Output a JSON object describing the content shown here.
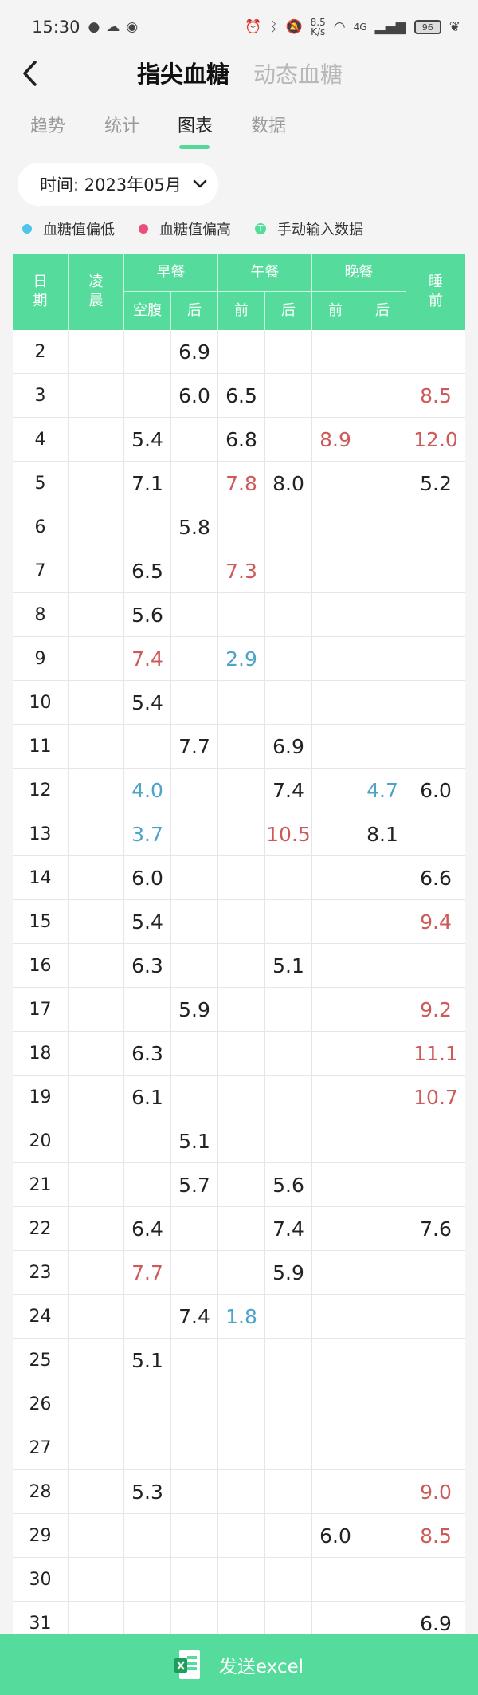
{
  "status_bar": {
    "time": "15:30",
    "net_speed_value": "8.5",
    "net_speed_unit": "K/s",
    "signal": "4G",
    "battery": "96"
  },
  "header": {
    "title_active": "指尖血糖",
    "title_inactive": "动态血糖"
  },
  "tabs": [
    {
      "label": "趋势",
      "active": false
    },
    {
      "label": "统计",
      "active": false
    },
    {
      "label": "图表",
      "active": true
    },
    {
      "label": "数据",
      "active": false
    }
  ],
  "time_filter": {
    "label": "时间: 2023年05月"
  },
  "legend": [
    {
      "label": "血糖值偏低",
      "color": "#4ec6ea"
    },
    {
      "label": "血糖值偏高",
      "color": "#ea4f7b"
    },
    {
      "label": "手动输入数据",
      "color": "#55dc9c",
      "symbol": "T"
    }
  ],
  "table": {
    "headers": {
      "date": "日\n期",
      "dawn": "凌\n晨",
      "breakfast": "早餐",
      "lunch": "午餐",
      "dinner": "晚餐",
      "bedtime": "睡\n前",
      "fasting": "空腹",
      "after": "后",
      "before": "前"
    },
    "rows": [
      {
        "date": "2",
        "values": [
          "",
          "",
          "6.9",
          "",
          "",
          "",
          "",
          ""
        ]
      },
      {
        "date": "3",
        "values": [
          "",
          "",
          "6.0",
          "6.5",
          "",
          "",
          "",
          "8.5"
        ]
      },
      {
        "date": "4",
        "values": [
          "",
          "5.4",
          "",
          "6.8",
          "",
          "8.9",
          "",
          "12.0"
        ]
      },
      {
        "date": "5",
        "values": [
          "",
          "7.1",
          "",
          "7.8",
          "8.0",
          "",
          "",
          "5.2"
        ]
      },
      {
        "date": "6",
        "values": [
          "",
          "",
          "5.8",
          "",
          "",
          "",
          "",
          ""
        ]
      },
      {
        "date": "7",
        "values": [
          "",
          "6.5",
          "",
          "7.3",
          "",
          "",
          "",
          ""
        ]
      },
      {
        "date": "8",
        "values": [
          "",
          "5.6",
          "",
          "",
          "",
          "",
          "",
          ""
        ]
      },
      {
        "date": "9",
        "values": [
          "",
          "7.4",
          "",
          "2.9",
          "",
          "",
          "",
          ""
        ]
      },
      {
        "date": "10",
        "values": [
          "",
          "5.4",
          "",
          "",
          "",
          "",
          "",
          ""
        ]
      },
      {
        "date": "11",
        "values": [
          "",
          "",
          "7.7",
          "",
          "6.9",
          "",
          "",
          ""
        ]
      },
      {
        "date": "12",
        "values": [
          "",
          "4.0",
          "",
          "",
          "7.4",
          "",
          "4.7",
          "6.0"
        ]
      },
      {
        "date": "13",
        "values": [
          "",
          "3.7",
          "",
          "",
          "10.5",
          "",
          "8.1",
          ""
        ]
      },
      {
        "date": "14",
        "values": [
          "",
          "6.0",
          "",
          "",
          "",
          "",
          "",
          "6.6"
        ]
      },
      {
        "date": "15",
        "values": [
          "",
          "5.4",
          "",
          "",
          "",
          "",
          "",
          "9.4"
        ]
      },
      {
        "date": "16",
        "values": [
          "",
          "6.3",
          "",
          "",
          "5.1",
          "",
          "",
          ""
        ]
      },
      {
        "date": "17",
        "values": [
          "",
          "",
          "5.9",
          "",
          "",
          "",
          "",
          "9.2"
        ]
      },
      {
        "date": "18",
        "values": [
          "",
          "6.3",
          "",
          "",
          "",
          "",
          "",
          "11.1"
        ]
      },
      {
        "date": "19",
        "values": [
          "",
          "6.1",
          "",
          "",
          "",
          "",
          "",
          "10.7"
        ]
      },
      {
        "date": "20",
        "values": [
          "",
          "",
          "5.1",
          "",
          "",
          "",
          "",
          ""
        ]
      },
      {
        "date": "21",
        "values": [
          "",
          "",
          "5.7",
          "",
          "5.6",
          "",
          "",
          ""
        ]
      },
      {
        "date": "22",
        "values": [
          "",
          "6.4",
          "",
          "",
          "7.4",
          "",
          "",
          "7.6"
        ]
      },
      {
        "date": "23",
        "values": [
          "",
          "7.7",
          "",
          "",
          "5.9",
          "",
          "",
          ""
        ]
      },
      {
        "date": "24",
        "values": [
          "",
          "",
          "7.4",
          "1.8",
          "",
          "",
          "",
          ""
        ]
      },
      {
        "date": "25",
        "values": [
          "",
          "5.1",
          "",
          "",
          "",
          "",
          "",
          ""
        ]
      },
      {
        "date": "26",
        "values": [
          "",
          "",
          "",
          "",
          "",
          "",
          "",
          ""
        ]
      },
      {
        "date": "27",
        "values": [
          "",
          "",
          "",
          "",
          "",
          "",
          "",
          ""
        ]
      },
      {
        "date": "28",
        "values": [
          "",
          "5.3",
          "",
          "",
          "",
          "",
          "",
          "9.0"
        ]
      },
      {
        "date": "29",
        "values": [
          "",
          "",
          "",
          "",
          "",
          "6.0",
          "",
          "8.5"
        ]
      },
      {
        "date": "30",
        "values": [
          "",
          "",
          "",
          "",
          "",
          "",
          "",
          ""
        ]
      },
      {
        "date": "31",
        "values": [
          "",
          "",
          "",
          "",
          "",
          "",
          "",
          "6.9"
        ]
      }
    ],
    "status": {
      "3": [
        "",
        "",
        "",
        "",
        "",
        "",
        "",
        "high"
      ],
      "4": [
        "",
        "",
        "",
        "",
        "",
        "high",
        "",
        "high"
      ],
      "5": [
        "",
        "",
        "",
        "high",
        "",
        "",
        "",
        ""
      ],
      "7": [
        "",
        "",
        "",
        "high",
        "",
        "",
        "",
        ""
      ],
      "9": [
        "",
        "high",
        "",
        "low",
        "",
        "",
        "",
        ""
      ],
      "12": [
        "",
        "low",
        "",
        "",
        "",
        "",
        "low",
        ""
      ],
      "13": [
        "",
        "low",
        "",
        "",
        "high",
        "",
        "",
        ""
      ],
      "15": [
        "",
        "",
        "",
        "",
        "",
        "",
        "",
        "high"
      ],
      "17": [
        "",
        "",
        "",
        "",
        "",
        "",
        "",
        "high"
      ],
      "18": [
        "",
        "",
        "",
        "",
        "",
        "",
        "",
        "high"
      ],
      "19": [
        "",
        "",
        "",
        "",
        "",
        "",
        "",
        "high"
      ],
      "23": [
        "",
        "high",
        "",
        "",
        "",
        "",
        "",
        ""
      ],
      "24": [
        "",
        "",
        "",
        "low",
        "",
        "",
        "",
        ""
      ],
      "28": [
        "",
        "",
        "",
        "",
        "",
        "",
        "",
        "high"
      ],
      "29": [
        "",
        "",
        "",
        "",
        "",
        "",
        "",
        "high"
      ]
    }
  },
  "bottom_action": {
    "label": "发送excel"
  },
  "colors": {
    "accent": "#55dc9c",
    "high": "#cd5a58",
    "low": "#4ea3c9"
  }
}
